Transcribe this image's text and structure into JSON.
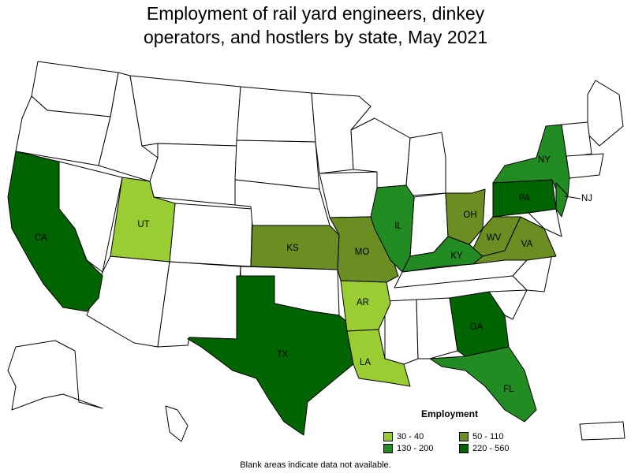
{
  "title_line1": "Employment of rail yard engineers, dinkey",
  "title_line2": "operators, and hostlers by state, May 2021",
  "legend": {
    "title": "Employment",
    "items": [
      {
        "label": "30 - 40",
        "color": "#9acd32"
      },
      {
        "label": "50 - 110",
        "color": "#6b8e23"
      },
      {
        "label": "130 - 200",
        "color": "#228b22"
      },
      {
        "label": "220 - 560",
        "color": "#006400"
      }
    ]
  },
  "footnote": "Blank areas indicate data not available.",
  "states": {
    "CA": {
      "label": "CA",
      "range": "220 - 560",
      "color": "#006400"
    },
    "UT": {
      "label": "UT",
      "range": "30 - 40",
      "color": "#9acd32"
    },
    "TX": {
      "label": "TX",
      "range": "220 - 560",
      "color": "#006400"
    },
    "KS": {
      "label": "KS",
      "range": "50 - 110",
      "color": "#6b8e23"
    },
    "MO": {
      "label": "MO",
      "range": "50 - 110",
      "color": "#6b8e23"
    },
    "AR": {
      "label": "AR",
      "range": "30 - 40",
      "color": "#9acd32"
    },
    "LA": {
      "label": "LA",
      "range": "30 - 40",
      "color": "#9acd32"
    },
    "IL": {
      "label": "IL",
      "range": "130 - 200",
      "color": "#228b22"
    },
    "OH": {
      "label": "OH",
      "range": "50 - 110",
      "color": "#6b8e23"
    },
    "KY": {
      "label": "KY",
      "range": "130 - 200",
      "color": "#228b22"
    },
    "WV": {
      "label": "WV",
      "range": "50 - 110",
      "color": "#6b8e23"
    },
    "VA": {
      "label": "VA",
      "range": "50 - 110",
      "color": "#6b8e23"
    },
    "PA": {
      "label": "PA",
      "range": "220 - 560",
      "color": "#006400"
    },
    "NY": {
      "label": "NY",
      "range": "130 - 200",
      "color": "#228b22"
    },
    "NJ": {
      "label": "NJ",
      "range": "130 - 200",
      "color": "#228b22"
    },
    "GA": {
      "label": "GA",
      "range": "220 - 560",
      "color": "#006400"
    },
    "FL": {
      "label": "FL",
      "range": "130 - 200",
      "color": "#228b22"
    }
  }
}
